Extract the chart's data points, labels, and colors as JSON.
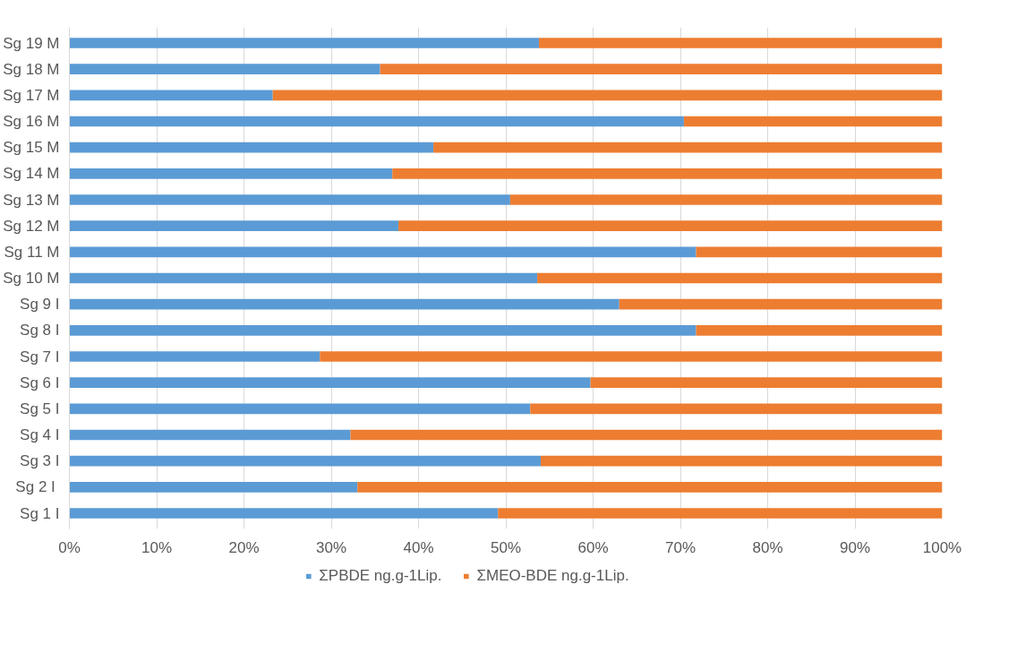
{
  "chart_data": {
    "type": "bar",
    "orientation": "horizontal",
    "stacked": true,
    "categories": [
      "Sg 19 M",
      "Sg 18 M",
      "Sg 17 M",
      "Sg 16 M",
      "Sg 15 M",
      "Sg 14 M",
      "Sg 13 M",
      "Sg 12 M",
      "Sg 11 M",
      "Sg 10 M",
      "Sg 9 I",
      "Sg 8 I",
      "Sg 7 I",
      "Sg 6 I",
      "Sg 5 I",
      "Sg 4 I",
      "Sg 3 I",
      "Sg 2  I",
      "Sg 1 I"
    ],
    "series": [
      {
        "name": "ΣPBDE ng.g-1Lip.",
        "color": "#5b9bd5",
        "values": [
          53.8,
          35.6,
          23.3,
          70.4,
          41.7,
          37.0,
          50.5,
          37.7,
          71.8,
          53.6,
          63.0,
          71.8,
          28.7,
          59.7,
          52.8,
          32.2,
          54.0,
          33.0,
          49.1
        ]
      },
      {
        "name": "ΣMEO-BDE ng.g-1Lip.",
        "color": "#ed7d31",
        "values": [
          46.2,
          64.4,
          76.7,
          29.6,
          58.3,
          63.0,
          49.5,
          62.3,
          28.2,
          46.4,
          37.0,
          28.2,
          71.3,
          40.3,
          47.2,
          67.8,
          46.0,
          67.0,
          50.9
        ]
      }
    ],
    "xlim": [
      0,
      100
    ],
    "xticks": [
      {
        "value": 0,
        "label": "0%"
      },
      {
        "value": 10,
        "label": "10%"
      },
      {
        "value": 20,
        "label": "20%"
      },
      {
        "value": 30,
        "label": "30%"
      },
      {
        "value": 40,
        "label": "40%"
      },
      {
        "value": 50,
        "label": "50%"
      },
      {
        "value": 60,
        "label": "60%"
      },
      {
        "value": 70,
        "label": "70%"
      },
      {
        "value": 80,
        "label": "80%"
      },
      {
        "value": 90,
        "label": "90%"
      },
      {
        "value": 100,
        "label": "100%"
      }
    ],
    "grid": "x",
    "legend": "bottom"
  }
}
